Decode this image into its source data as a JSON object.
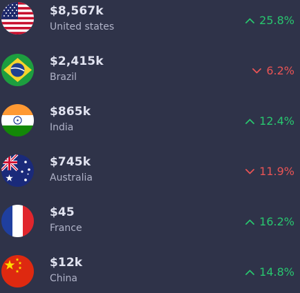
{
  "colors": {
    "background": "#2f3349",
    "positive": "#28c76f",
    "negative": "#ea5455"
  },
  "countries": [
    {
      "amount": "$8,567k",
      "name": "United states",
      "change": "25.8%",
      "direction": "up",
      "flag_icon": "us-flag-icon"
    },
    {
      "amount": "$2,415k",
      "name": "Brazil",
      "change": "6.2%",
      "direction": "down",
      "flag_icon": "brazil-flag-icon"
    },
    {
      "amount": "$865k",
      "name": "India",
      "change": "12.4%",
      "direction": "up",
      "flag_icon": "india-flag-icon"
    },
    {
      "amount": "$745k",
      "name": "Australia",
      "change": "11.9%",
      "direction": "down",
      "flag_icon": "australia-flag-icon"
    },
    {
      "amount": "$45",
      "name": "France",
      "change": "16.2%",
      "direction": "up",
      "flag_icon": "france-flag-icon"
    },
    {
      "amount": "$12k",
      "name": "China",
      "change": "14.8%",
      "direction": "up",
      "flag_icon": "china-flag-icon"
    }
  ]
}
